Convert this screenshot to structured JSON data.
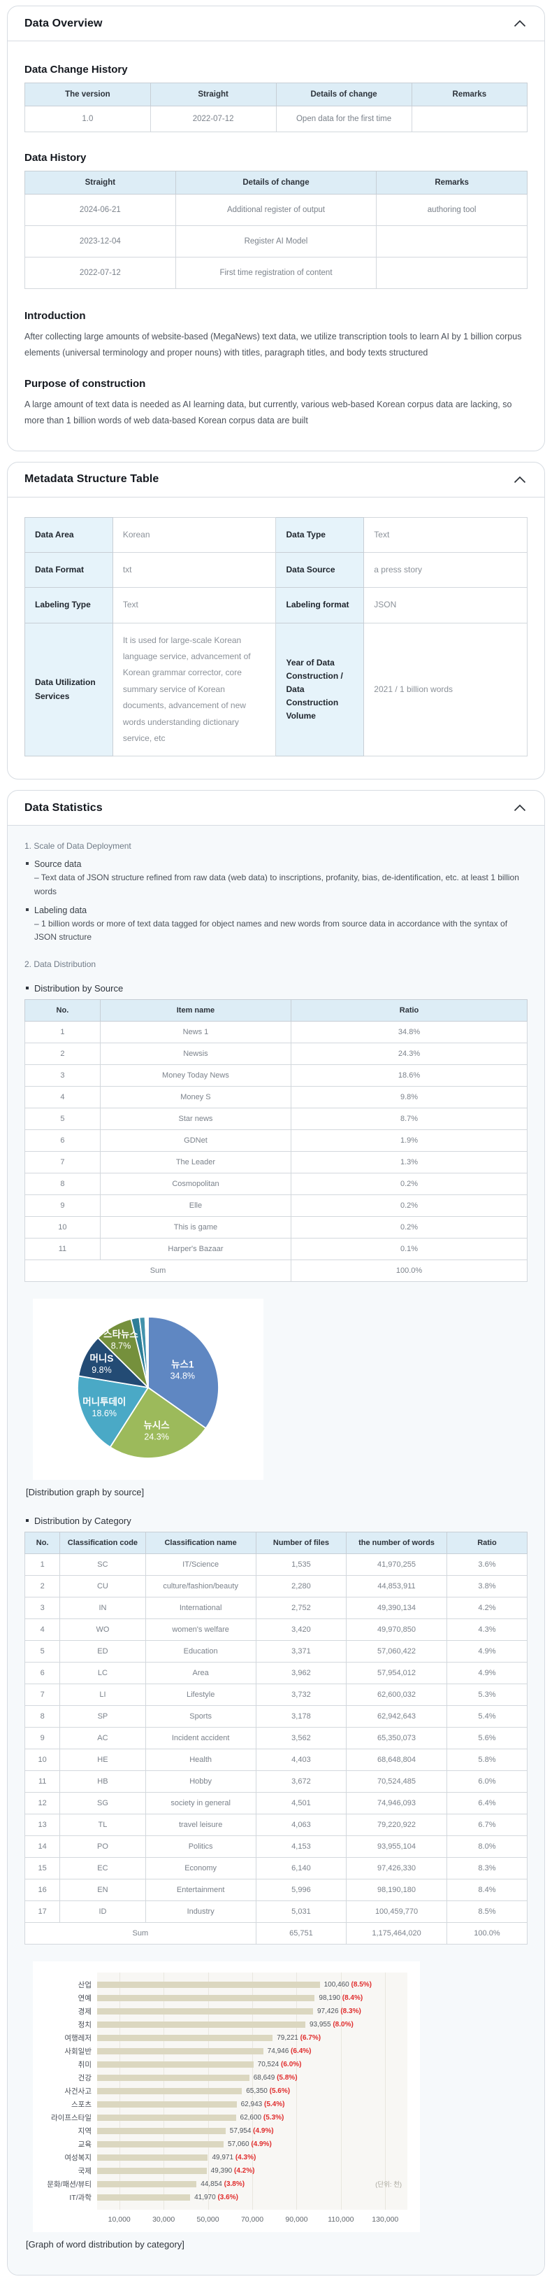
{
  "overview": {
    "title": "Data Overview",
    "change_history": {
      "title": "Data Change History",
      "widths": [
        "25%",
        "25%",
        "27%",
        "23%"
      ],
      "headers": [
        "The version",
        "Straight",
        "Details of change",
        "Remarks"
      ],
      "rows": [
        [
          "1.0",
          "2022-07-12",
          "Open data for the first time",
          ""
        ]
      ]
    },
    "data_history": {
      "title": "Data History",
      "widths": [
        "30%",
        "40%",
        "30%"
      ],
      "headers": [
        "Straight",
        "Details of change",
        "Remarks"
      ],
      "rows": [
        [
          "2024-06-21",
          "Additional register of output",
          "authoring tool"
        ],
        [
          "2023-12-04",
          "Register AI Model",
          ""
        ],
        [
          "2022-07-12",
          "First time registration of content",
          ""
        ]
      ]
    },
    "introduction": {
      "title": "Introduction",
      "body": "After collecting large amounts of website-based (MegaNews) text data, we utilize transcription tools to learn AI by 1 billion corpus elements (universal terminology and proper nouns) with titles, paragraph titles, and body texts structured"
    },
    "purpose": {
      "title": "Purpose of construction",
      "body": "A large amount of text data is needed as AI learning data, but currently, various web-based Korean corpus data are lacking, so more than 1 billion words of web data-based Korean corpus data are built"
    }
  },
  "metadata": {
    "title": "Metadata Structure Table",
    "widths": [
      "17.5%",
      "32.5%",
      "17.5%",
      "32.5%"
    ],
    "rows": [
      [
        "Data Area",
        "Korean",
        "Data Type",
        "Text"
      ],
      [
        "Data Format",
        "txt",
        "Data Source",
        "a press story"
      ],
      [
        "Labeling Type",
        "Text",
        "Labeling format",
        "JSON"
      ],
      [
        "Data Utilization Services",
        "It is used for large-scale Korean language service, advancement of Korean grammar corrector, core summary service of Korean documents, advancement of new words understanding dictionary service, etc",
        "Year of Data Construction / Data Construction Volume",
        "2021 / 1 billion words"
      ]
    ]
  },
  "statistics": {
    "title": "Data Statistics",
    "scale_heading": "1. Scale of Data Deployment",
    "bullets": [
      {
        "label": "Source data",
        "detail": "– Text data of JSON structure refined from raw data (web data) to inscriptions, profanity, bias, de-identification, etc. at least 1 billion words"
      },
      {
        "label": "Labeling data",
        "detail": "– 1 billion words or more of text data tagged for object names and new words from source data in accordance with the syntax of JSON structure"
      }
    ],
    "distribution_heading": "2. Data Distribution",
    "by_source_heading": "Distribution by Source",
    "by_source": {
      "widths": [
        "15%",
        "38%",
        "47%"
      ],
      "headers": [
        "No.",
        "Item name",
        "Ratio"
      ],
      "rows": [
        [
          "1",
          "News 1",
          "34.8%"
        ],
        [
          "2",
          "Newsis",
          "24.3%"
        ],
        [
          "3",
          "Money Today News",
          "18.6%"
        ],
        [
          "4",
          "Money S",
          "9.8%"
        ],
        [
          "5",
          "Star news",
          "8.7%"
        ],
        [
          "6",
          "GDNet",
          "1.9%"
        ],
        [
          "7",
          "The Leader",
          "1.3%"
        ],
        [
          "8",
          "Cosmopolitan",
          "0.2%"
        ],
        [
          "9",
          "Elle",
          "0.2%"
        ],
        [
          "10",
          "This is game",
          "0.2%"
        ],
        [
          "11",
          "Harper's Bazaar",
          "0.1%"
        ]
      ],
      "footer": [
        {
          "text": "Sum",
          "colspan": 2
        },
        {
          "text": "100.0%"
        }
      ]
    },
    "pie_caption": "[Distribution graph by source]",
    "by_category_heading": "Distribution by Category",
    "by_category": {
      "widths": [
        "7%",
        "17%",
        "22%",
        "18%",
        "20%",
        "16%"
      ],
      "headers": [
        "No.",
        "Classification code",
        "Classification name",
        "Number of files",
        "the number of words",
        "Ratio"
      ],
      "rows": [
        [
          "1",
          "SC",
          "IT/Science",
          "1,535",
          "41,970,255",
          "3.6%"
        ],
        [
          "2",
          "CU",
          "culture/fashion/beauty",
          "2,280",
          "44,853,911",
          "3.8%"
        ],
        [
          "3",
          "IN",
          "International",
          "2,752",
          "49,390,134",
          "4.2%"
        ],
        [
          "4",
          "WO",
          "women's welfare",
          "3,420",
          "49,970,850",
          "4.3%"
        ],
        [
          "5",
          "ED",
          "Education",
          "3,371",
          "57,060,422",
          "4.9%"
        ],
        [
          "6",
          "LC",
          "Area",
          "3,962",
          "57,954,012",
          "4.9%"
        ],
        [
          "7",
          "LI",
          "Lifestyle",
          "3,732",
          "62,600,032",
          "5.3%"
        ],
        [
          "8",
          "SP",
          "Sports",
          "3,178",
          "62,942,643",
          "5.4%"
        ],
        [
          "9",
          "AC",
          "Incident accident",
          "3,562",
          "65,350,073",
          "5.6%"
        ],
        [
          "10",
          "HE",
          "Health",
          "4,403",
          "68,648,804",
          "5.8%"
        ],
        [
          "11",
          "HB",
          "Hobby",
          "3,672",
          "70,524,485",
          "6.0%"
        ],
        [
          "12",
          "SG",
          "society in general",
          "4,501",
          "74,946,093",
          "6.4%"
        ],
        [
          "13",
          "TL",
          "travel leisure",
          "4,063",
          "79,220,922",
          "6.7%"
        ],
        [
          "14",
          "PO",
          "Politics",
          "4,153",
          "93,955,104",
          "8.0%"
        ],
        [
          "15",
          "EC",
          "Economy",
          "6,140",
          "97,426,330",
          "8.3%"
        ],
        [
          "16",
          "EN",
          "Entertainment",
          "5,996",
          "98,190,180",
          "8.4%"
        ],
        [
          "17",
          "ID",
          "Industry",
          "5,031",
          "100,459,770",
          "8.5%"
        ]
      ],
      "footer": [
        {
          "text": "Sum",
          "colspan": 3
        },
        {
          "text": "65,751"
        },
        {
          "text": "1,175,464,020"
        },
        {
          "text": "100.0%"
        }
      ]
    },
    "bar_caption": "[Graph of word distribution by category]"
  },
  "chart_data": [
    {
      "type": "pie",
      "title": "Distribution by source",
      "legend_position": "none",
      "slices": [
        {
          "label": "뉴스1",
          "pct": 34.8,
          "color": "#5f87c2",
          "show_label": true,
          "label_r": 0.55
        },
        {
          "label": "뉴시스",
          "pct": 24.3,
          "color": "#9cba5b",
          "show_label": true,
          "label_r": 0.62
        },
        {
          "label": "머니투데이",
          "pct": 18.6,
          "color": "#4aa9c6",
          "show_label": true,
          "label_r": 0.68
        },
        {
          "label": "머니S",
          "pct": 9.8,
          "color": "#234b74",
          "show_label": true,
          "label_r": 0.74
        },
        {
          "label": "스타뉴스",
          "pct": 8.7,
          "color": "#75903c",
          "show_label": true,
          "label_r": 0.78
        },
        {
          "label": "GDNet",
          "pct": 1.9,
          "color": "#2e7e97",
          "show_label": false
        },
        {
          "label": "The Leader",
          "pct": 1.3,
          "color": "#4292ac",
          "show_label": false
        },
        {
          "label": "Cosmopolitan",
          "pct": 0.2,
          "color": "#95b3d7",
          "show_label": false
        },
        {
          "label": "Elle",
          "pct": 0.2,
          "color": "#b8cce4",
          "show_label": false
        },
        {
          "label": "This is game",
          "pct": 0.2,
          "color": "#8db4e2",
          "show_label": false
        },
        {
          "label": "Harper's Bazaar",
          "pct": 0.1,
          "color": "#dbe5f1",
          "show_label": false
        }
      ]
    },
    {
      "type": "bar",
      "orientation": "horizontal",
      "title": "Word distribution by category",
      "xlim": [
        0,
        140000
      ],
      "grid": true,
      "bar_color": "#dbd7c0",
      "unit_note": "(단위: 천)",
      "x_ticks": [
        10000,
        30000,
        50000,
        70000,
        90000,
        110000,
        130000
      ],
      "x_tick_labels": [
        "10,000",
        "30,000",
        "50,000",
        "70,000",
        "90,000",
        "110,000",
        "130,000"
      ],
      "items": [
        {
          "label": "산업",
          "value": 100460,
          "text": "100,460",
          "pct": "(8.5%)"
        },
        {
          "label": "연예",
          "value": 98190,
          "text": "98,190",
          "pct": "(8.4%)"
        },
        {
          "label": "경제",
          "value": 97426,
          "text": "97,426",
          "pct": "(8.3%)"
        },
        {
          "label": "정치",
          "value": 93955,
          "text": "93,955",
          "pct": "(8.0%)"
        },
        {
          "label": "여행레저",
          "value": 79221,
          "text": "79,221",
          "pct": "(6.7%)"
        },
        {
          "label": "사회일반",
          "value": 74946,
          "text": "74,946",
          "pct": "(6.4%)"
        },
        {
          "label": "취미",
          "value": 70524,
          "text": "70,524",
          "pct": "(6.0%)"
        },
        {
          "label": "건강",
          "value": 68649,
          "text": "68,649",
          "pct": "(5.8%)"
        },
        {
          "label": "사건사고",
          "value": 65350,
          "text": "65,350",
          "pct": "(5.6%)"
        },
        {
          "label": "스포츠",
          "value": 62943,
          "text": "62,943",
          "pct": "(5.4%)"
        },
        {
          "label": "라이프스타일",
          "value": 62600,
          "text": "62,600",
          "pct": "(5.3%)"
        },
        {
          "label": "지역",
          "value": 57954,
          "text": "57,954",
          "pct": "(4.9%)"
        },
        {
          "label": "교육",
          "value": 57060,
          "text": "57,060",
          "pct": "(4.9%)"
        },
        {
          "label": "여성복지",
          "value": 49971,
          "text": "49,971",
          "pct": "(4.3%)"
        },
        {
          "label": "국제",
          "value": 49390,
          "text": "49,390",
          "pct": "(4.2%)"
        },
        {
          "label": "문화/패션/뷰티",
          "value": 44854,
          "text": "44,854",
          "pct": "(3.8%)"
        },
        {
          "label": "IT/과학",
          "value": 41970,
          "text": "41,970",
          "pct": "(3.6%)"
        }
      ]
    }
  ]
}
